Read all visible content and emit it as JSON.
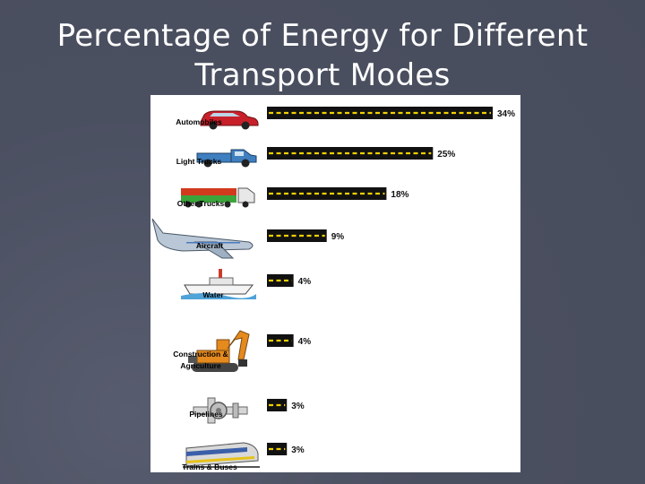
{
  "title_line1": "Percentage of Energy for Different",
  "title_line2": "Transport Modes",
  "colors": {
    "background": "#4b5061",
    "road": "#111111",
    "stripe": "#f0d000",
    "panel": "#ffffff"
  },
  "chart_data": {
    "type": "bar",
    "orientation": "horizontal",
    "title": "Percentage of Energy for Different Transport Modes",
    "categories": [
      "Automobiles",
      "Light Trucks",
      "Other Trucks",
      "Aircraft",
      "Water",
      "Construction & Agriculture",
      "Pipelines",
      "Trains & Buses"
    ],
    "category_lines": [
      [
        "Automobiles"
      ],
      [
        "Light Trucks"
      ],
      [
        "Other Trucks"
      ],
      [
        "Aircraft"
      ],
      [
        "Water"
      ],
      [
        "Construction &",
        "Agriculture"
      ],
      [
        "Pipelines"
      ],
      [
        "Trains & Buses"
      ]
    ],
    "values": [
      34,
      25,
      18,
      9,
      4,
      4,
      3,
      3
    ],
    "value_labels": [
      "34%",
      "25%",
      "18%",
      "9%",
      "4%",
      "4%",
      "3%",
      "3%"
    ],
    "icons": [
      "car-icon",
      "pickup-truck-icon",
      "semi-truck-icon",
      "airplane-icon",
      "ship-icon",
      "excavator-icon",
      "pipeline-icon",
      "train-icon"
    ],
    "unit": "%",
    "xlim": [
      0,
      34
    ],
    "grid": false,
    "legend": "none"
  }
}
